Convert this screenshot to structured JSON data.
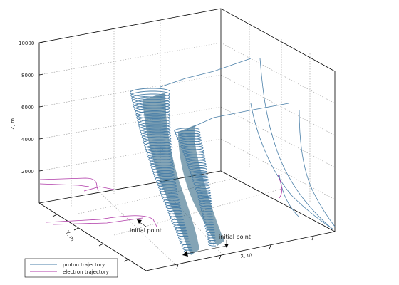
{
  "chart_data": {
    "type": "line",
    "title": "",
    "zlabel": "Z, m",
    "xlabel": "X, m",
    "ylabel": "Y, m",
    "z_ticks": [
      "2000",
      "4000",
      "6000",
      "8000",
      "10000"
    ],
    "zlim": [
      0,
      10000
    ],
    "grid": true,
    "legend_position": "bottom-left",
    "annotations": [
      "initial point",
      "initial point"
    ],
    "series": [
      {
        "name": "proton trajectory",
        "color": "#4a7fa8"
      },
      {
        "name": "electron trajectory",
        "color": "#b03aa8"
      }
    ]
  },
  "legend": {
    "items": [
      {
        "label": "proton trajectory",
        "color": "#4a7fa8"
      },
      {
        "label": "electron trajectory",
        "color": "#b03aa8"
      }
    ]
  },
  "colors": {
    "proton": "#4a7fa8",
    "electron": "#b03aa8",
    "dense_fill": "#1f5a78"
  }
}
